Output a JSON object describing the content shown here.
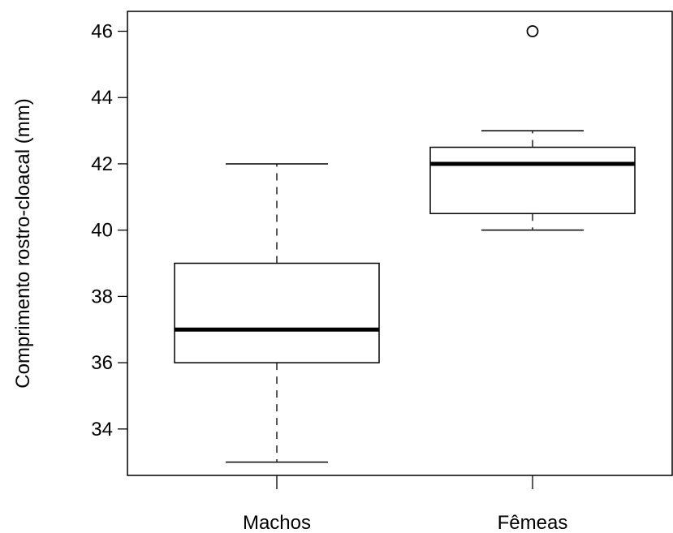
{
  "chart_data": {
    "type": "boxplot",
    "ylabel": "Comprimento rostro-cloacal (mm)",
    "xlabel": "",
    "ylim": [
      32.6,
      46.6
    ],
    "yticks": [
      34,
      36,
      38,
      40,
      42,
      44,
      46
    ],
    "categories": [
      "Machos",
      "Fêmeas"
    ],
    "boxes": [
      {
        "category": "Machos",
        "whisker_low": 33,
        "q1": 36,
        "median": 37,
        "q3": 39,
        "whisker_high": 42,
        "outliers": []
      },
      {
        "category": "Fêmeas",
        "whisker_low": 40,
        "q1": 40.5,
        "median": 42,
        "q3": 42.5,
        "whisker_high": 43,
        "outliers": [
          46
        ]
      }
    ],
    "grid": false,
    "colors": {
      "box_fill": "#ffffff",
      "stroke": "#000000"
    }
  }
}
